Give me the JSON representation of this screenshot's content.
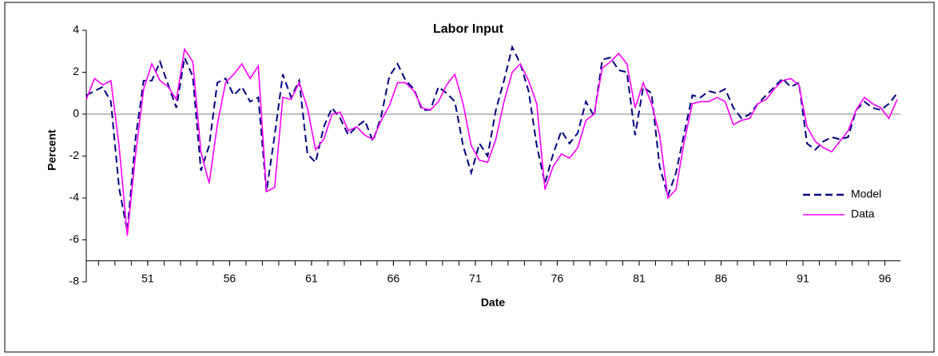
{
  "chart_data": {
    "type": "line",
    "title": "Labor Input",
    "xlabel": "Date",
    "ylabel": "Percent",
    "x": [
      47.25,
      47.75,
      48.25,
      48.75,
      49.25,
      49.75,
      50.25,
      50.75,
      51.25,
      51.75,
      52.25,
      52.75,
      53.25,
      53.75,
      54.25,
      54.75,
      55.25,
      55.75,
      56.25,
      56.75,
      57.25,
      57.75,
      58.25,
      58.75,
      59.25,
      59.75,
      60.25,
      60.75,
      61.25,
      61.75,
      62.25,
      62.75,
      63.25,
      63.75,
      64.25,
      64.75,
      65.25,
      65.75,
      66.25,
      66.75,
      67.25,
      67.75,
      68.25,
      68.75,
      69.25,
      69.75,
      70.25,
      70.75,
      71.25,
      71.75,
      72.25,
      72.75,
      73.25,
      73.75,
      74.25,
      74.75,
      75.25,
      75.75,
      76.25,
      76.75,
      77.25,
      77.75,
      78.25,
      78.75,
      79.25,
      79.75,
      80.25,
      80.75,
      81.25,
      81.75,
      82.25,
      82.75,
      83.25,
      83.75,
      84.25,
      84.75,
      85.25,
      85.75,
      86.25,
      86.75,
      87.25,
      87.75,
      88.25,
      88.75,
      89.25,
      89.75,
      90.25,
      90.75,
      91.25,
      91.75,
      92.25,
      92.75,
      93.25,
      93.75,
      94.25,
      94.75,
      95.25,
      95.75,
      96.25,
      96.75
    ],
    "series": [
      {
        "name": "Model",
        "color": "#000080",
        "style": "dashed",
        "values": [
          0.9,
          1.1,
          1.3,
          0.6,
          -3.5,
          -5.6,
          -1.2,
          1.6,
          1.6,
          2.5,
          1.4,
          0.3,
          2.7,
          1.8,
          -2.7,
          -1.5,
          1.5,
          1.7,
          0.9,
          1.3,
          0.6,
          0.8,
          -3.7,
          -1.0,
          1.9,
          0.8,
          1.6,
          -1.9,
          -2.3,
          -0.6,
          0.3,
          -0.2,
          -1.0,
          -0.6,
          -0.3,
          -1.3,
          -0.1,
          1.8,
          2.4,
          1.6,
          1.2,
          0.2,
          0.2,
          1.3,
          1.0,
          0.6,
          -1.5,
          -2.8,
          -1.4,
          -2.0,
          0.2,
          1.6,
          3.2,
          2.4,
          1.1,
          -1.5,
          -3.3,
          -1.9,
          -0.8,
          -1.4,
          -0.9,
          0.6,
          -0.1,
          2.6,
          2.7,
          2.1,
          2.0,
          -1.0,
          1.3,
          1.0,
          -2.5,
          -3.9,
          -2.8,
          -0.9,
          0.9,
          0.8,
          1.1,
          1.0,
          1.2,
          0.3,
          -0.2,
          0.0,
          0.5,
          0.9,
          1.3,
          1.7,
          1.3,
          1.5,
          -1.4,
          -1.7,
          -1.3,
          -1.1,
          -1.2,
          -1.1,
          0.2,
          0.6,
          0.3,
          0.2,
          0.5,
          1.0
        ]
      },
      {
        "name": "Data",
        "color": "#ff00ff",
        "style": "solid",
        "values": [
          0.7,
          1.7,
          1.4,
          1.6,
          -1.5,
          -5.8,
          -2.0,
          1.2,
          2.4,
          1.6,
          1.3,
          0.7,
          3.1,
          2.5,
          -1.8,
          -3.3,
          -0.5,
          1.5,
          1.9,
          2.4,
          1.7,
          2.3,
          -3.7,
          -3.5,
          0.8,
          0.7,
          1.5,
          0.3,
          -1.7,
          -1.2,
          0.0,
          0.1,
          -0.8,
          -0.6,
          -1.0,
          -1.2,
          -0.3,
          0.4,
          1.5,
          1.5,
          1.1,
          0.3,
          0.2,
          0.6,
          1.4,
          1.9,
          0.5,
          -1.5,
          -2.2,
          -2.3,
          -1.2,
          0.6,
          2.0,
          2.4,
          1.6,
          0.5,
          -3.6,
          -2.5,
          -1.9,
          -2.1,
          -1.6,
          -0.3,
          0.0,
          2.2,
          2.5,
          2.9,
          2.4,
          0.3,
          1.5,
          0.5,
          -1.0,
          -4.0,
          -3.6,
          -1.3,
          0.5,
          0.6,
          0.6,
          0.8,
          0.6,
          -0.5,
          -0.3,
          -0.2,
          0.5,
          0.7,
          1.2,
          1.6,
          1.7,
          1.4,
          -0.6,
          -1.3,
          -1.6,
          -1.8,
          -1.3,
          -0.8,
          0.2,
          0.8,
          0.5,
          0.3,
          -0.2,
          0.7
        ]
      }
    ],
    "xlim": [
      47.25,
      96.95
    ],
    "xticks": [
      51,
      56,
      61,
      66,
      71,
      76,
      81,
      86,
      91,
      96
    ],
    "xminor_ticks": [
      48,
      49,
      50,
      51,
      52,
      53,
      54,
      55,
      56,
      57,
      58,
      59,
      60,
      61,
      62,
      63,
      64,
      65,
      66,
      67,
      68,
      69,
      70,
      71,
      72,
      73,
      74,
      75,
      76,
      77,
      78,
      79,
      80,
      81,
      82,
      83,
      84,
      85,
      86,
      87,
      88,
      89,
      90,
      91,
      92,
      93,
      94,
      95,
      96
    ],
    "x_axis_at": -7,
    "ylim": [
      -8,
      4
    ],
    "yticks": [
      -8,
      -6,
      -4,
      -2,
      0,
      2,
      4
    ],
    "zero_line": true,
    "legend": "right"
  }
}
